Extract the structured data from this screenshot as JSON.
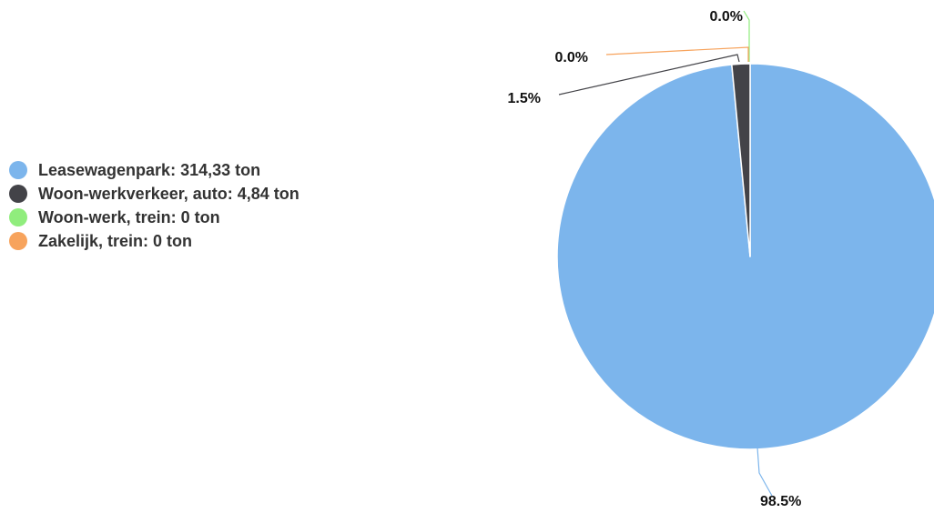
{
  "chart_data": {
    "type": "pie",
    "slices": [
      {
        "name": "Leasewagenpark",
        "legend_label": "Leasewagenpark: 314,33 ton",
        "value": 314.33,
        "percent_label": "98.5%",
        "color": "#7cb5ec"
      },
      {
        "name": "Woon-werkverkeer, auto",
        "legend_label": "Woon-werkverkeer, auto: 4,84 ton",
        "value": 4.84,
        "percent_label": "1.5%",
        "color": "#434348"
      },
      {
        "name": "Woon-werk, trein",
        "legend_label": "Woon-werk, trein: 0 ton",
        "value": 0,
        "percent_label": "0.0%",
        "color": "#90ed7d"
      },
      {
        "name": "Zakelijk, trein",
        "legend_label": "Zakelijk, trein: 0 ton",
        "value": 0,
        "percent_label": "0.0%",
        "color": "#f7a35c"
      }
    ],
    "legend_position": "left",
    "unit": "ton"
  }
}
